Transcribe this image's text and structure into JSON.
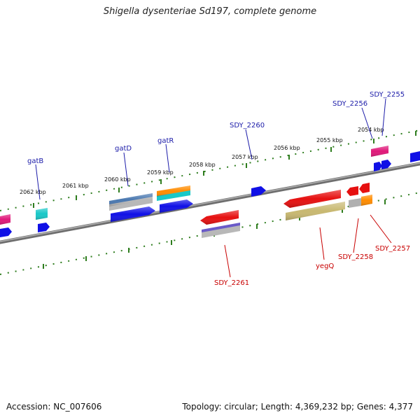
{
  "title": "Shigella dysenteriae Sd197, complete genome",
  "footer": {
    "accession": "Accession: NC_007606",
    "info": "Topology: circular; Length: 4,369,232 bp; Genes: 4,377"
  },
  "ticks": [
    "2062 kbp",
    "2061 kbp",
    "2060 kbp",
    "2059 kbp",
    "2058 kbp",
    "2057 kbp",
    "2056 kbp",
    "2055 kbp",
    "2054 kbp"
  ],
  "labels_top": [
    "gatB",
    "gatD",
    "gatR",
    "SDY_2260",
    "SDY_2256",
    "SDY_2255"
  ],
  "labels_bottom": [
    "SDY_2261",
    "yegQ",
    "SDY_2258",
    "SDY_2257"
  ],
  "colors": {
    "backbone": "#7a7a7a",
    "tick_dots": "#2e7d1e",
    "label_top": "#1a1aa8",
    "label_bottom": "#c80000",
    "blue": "#1010e6",
    "red": "#e61010",
    "magenta": "#e0187a",
    "cyan": "#18c8c8",
    "orange": "#ff8c00",
    "steelblue": "#4a78b0",
    "khaki": "#c8b870",
    "slateblue": "#6a5ac8",
    "gray": "#a8a8a8"
  }
}
